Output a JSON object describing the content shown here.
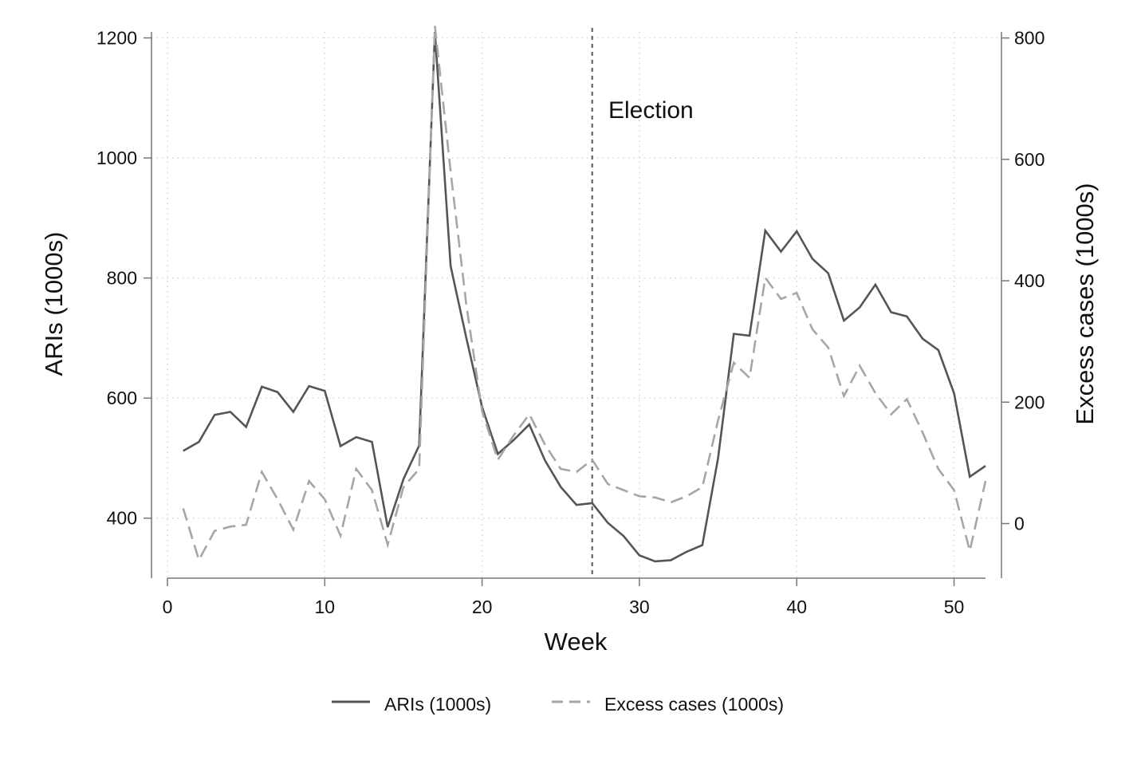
{
  "chart_data": {
    "type": "line",
    "xlabel": "Week",
    "ylabel": "ARIs (1000s)",
    "y2label": "Excess cases (1000s)",
    "xlim": [
      0,
      52
    ],
    "ylim": [
      300,
      1210
    ],
    "y2lim": [
      -90,
      810
    ],
    "x_ticks": [
      0,
      10,
      20,
      30,
      40,
      50
    ],
    "y_ticks": [
      400,
      600,
      800,
      1000,
      1200
    ],
    "y2_ticks": [
      0,
      200,
      400,
      600,
      800
    ],
    "grid": true,
    "legend_position": "bottom",
    "annotation": {
      "x": 27,
      "label": "Election"
    },
    "x": [
      1,
      2,
      3,
      4,
      5,
      6,
      7,
      8,
      9,
      10,
      11,
      12,
      13,
      14,
      15,
      16,
      17,
      18,
      19,
      20,
      21,
      22,
      23,
      24,
      25,
      26,
      27,
      28,
      29,
      30,
      31,
      32,
      33,
      34,
      35,
      36,
      37,
      38,
      39,
      40,
      41,
      42,
      43,
      44,
      45,
      46,
      47,
      48,
      49,
      50,
      51,
      52
    ],
    "series": [
      {
        "name": "ARIs (1000s)",
        "axis": "left",
        "color": "#555555",
        "dash": "solid",
        "values": [
          512,
          527,
          572,
          577,
          552,
          619,
          610,
          577,
          620,
          612,
          520,
          535,
          527,
          385,
          465,
          521,
          1210,
          820,
          700,
          585,
          507,
          530,
          556,
          496,
          452,
          422,
          425,
          392,
          370,
          338,
          328,
          330,
          344,
          355,
          500,
          707,
          704,
          879,
          844,
          878,
          832,
          808,
          729,
          751,
          789,
          743,
          736,
          699,
          680,
          608,
          469,
          487
        ]
      },
      {
        "name": "Excess cases (1000s)",
        "axis": "right",
        "color": "#a6a6a6",
        "dash": "dashed",
        "values": [
          25,
          -60,
          -12,
          -5,
          -2,
          85,
          40,
          -10,
          70,
          40,
          -20,
          90,
          55,
          -35,
          60,
          90,
          820,
          580,
          360,
          185,
          105,
          145,
          180,
          130,
          90,
          85,
          105,
          65,
          55,
          45,
          43,
          35,
          45,
          60,
          170,
          265,
          240,
          405,
          370,
          380,
          320,
          290,
          210,
          260,
          215,
          180,
          205,
          150,
          90,
          55,
          -45,
          70
        ]
      }
    ]
  }
}
